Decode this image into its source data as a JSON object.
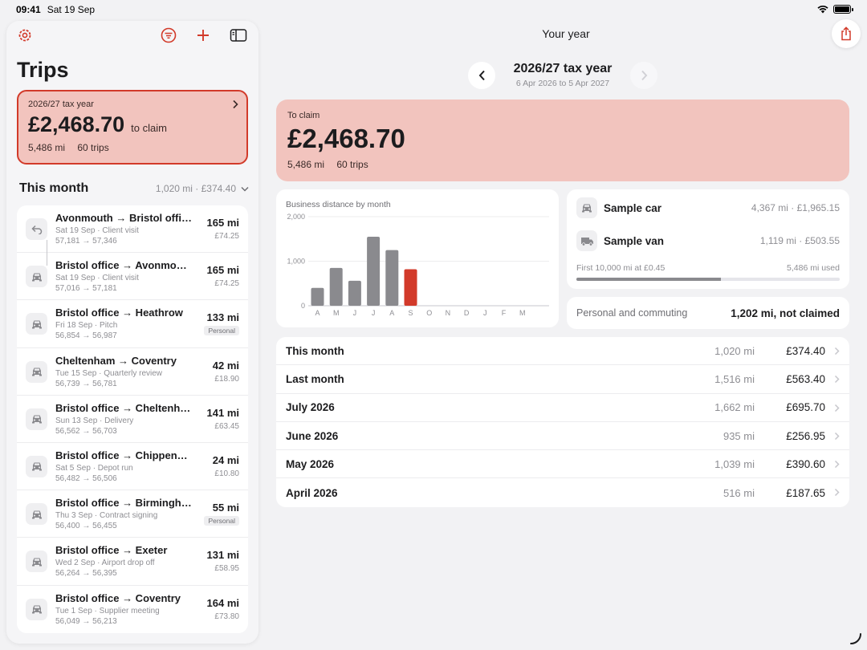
{
  "status": {
    "time": "09:41",
    "date": "Sat 19 Sep"
  },
  "colors": {
    "accent": "#d23a2a",
    "claim_bg": "#f2c4be",
    "bar_gray": "#8a8a8e",
    "bar_current": "#d23a2a"
  },
  "sidebar": {
    "title": "Trips",
    "toolbar": {
      "settings_icon": "gear-icon",
      "filter_icon": "filter-icon",
      "add_icon": "plus-icon",
      "sidebar_icon": "sidebar-toggle-icon"
    },
    "tax_card": {
      "label": "2026/27 tax year",
      "amount": "£2,468.70",
      "to_claim": "to claim",
      "miles": "5,486 mi",
      "trips": "60 trips"
    },
    "this_month": {
      "title": "This month",
      "summary": "1,020 mi · £374.40"
    },
    "trips": [
      {
        "route": "Avonmouth → Bristol office",
        "sub": "Sat 19 Sep · Client visit",
        "odo": "57,181 → 57,346",
        "dist": "165 mi",
        "amount": "£74.25",
        "badge": "",
        "icon": "return-arrow-icon"
      },
      {
        "route": "Bristol office → Avonmouth",
        "sub": "Sat 19 Sep · Client visit",
        "odo": "57,016 → 57,181",
        "dist": "165 mi",
        "amount": "£74.25",
        "badge": "",
        "icon": "car-icon"
      },
      {
        "route": "Bristol office → Heathrow",
        "sub": "Fri 18 Sep · Pitch",
        "odo": "56,854 → 56,987",
        "dist": "133 mi",
        "amount": "",
        "badge": "Personal",
        "icon": "car-icon"
      },
      {
        "route": "Cheltenham → Coventry",
        "sub": "Tue 15 Sep · Quarterly review",
        "odo": "56,739 → 56,781",
        "dist": "42 mi",
        "amount": "£18.90",
        "badge": "",
        "icon": "car-icon"
      },
      {
        "route": "Bristol office → Cheltenham",
        "sub": "Sun 13 Sep · Delivery",
        "odo": "56,562 → 56,703",
        "dist": "141 mi",
        "amount": "£63.45",
        "badge": "",
        "icon": "car-icon"
      },
      {
        "route": "Bristol office → Chippenham",
        "sub": "Sat 5 Sep · Depot run",
        "odo": "56,482 → 56,506",
        "dist": "24 mi",
        "amount": "£10.80",
        "badge": "",
        "icon": "car-icon"
      },
      {
        "route": "Bristol office → Birmingham",
        "sub": "Thu 3 Sep · Contract signing",
        "odo": "56,400 → 56,455",
        "dist": "55 mi",
        "amount": "",
        "badge": "Personal",
        "icon": "car-icon"
      },
      {
        "route": "Bristol office → Exeter",
        "sub": "Wed 2 Sep · Airport drop off",
        "odo": "56,264 → 56,395",
        "dist": "131 mi",
        "amount": "£58.95",
        "badge": "",
        "icon": "car-icon"
      },
      {
        "route": "Bristol office → Coventry",
        "sub": "Tue 1 Sep · Supplier meeting",
        "odo": "56,049 → 56,213",
        "dist": "164 mi",
        "amount": "£73.80",
        "badge": "",
        "icon": "car-icon"
      }
    ]
  },
  "main": {
    "title": "Your year",
    "share_icon": "share-icon",
    "year_nav": {
      "title": "2026/27 tax year",
      "range": "6 Apr 2026 to 5 Apr 2027"
    },
    "claim": {
      "label": "To claim",
      "amount": "£2,468.70",
      "miles": "5,486 mi",
      "trips": "60 trips"
    },
    "vehicles": [
      {
        "name": "Sample car",
        "value": "4,367 mi · £1,965.15",
        "icon": "car-icon"
      },
      {
        "name": "Sample van",
        "value": "1,119 mi · £503.55",
        "icon": "van-icon"
      }
    ],
    "limit": {
      "label": "First 10,000 mi at £0.45",
      "used": "5,486 mi used",
      "fraction": 0.5486
    },
    "personal": {
      "label": "Personal and commuting",
      "value": "1,202 mi, not claimed"
    },
    "months": [
      {
        "name": "This month",
        "dist": "1,020 mi",
        "amount": "£374.40"
      },
      {
        "name": "Last month",
        "dist": "1,516 mi",
        "amount": "£563.40"
      },
      {
        "name": "July 2026",
        "dist": "1,662 mi",
        "amount": "£695.70"
      },
      {
        "name": "June 2026",
        "dist": "935 mi",
        "amount": "£256.95"
      },
      {
        "name": "May 2026",
        "dist": "1,039 mi",
        "amount": "£390.60"
      },
      {
        "name": "April 2026",
        "dist": "516 mi",
        "amount": "£187.65"
      }
    ]
  },
  "chart_data": {
    "type": "bar",
    "title": "Business distance by month",
    "categories": [
      "A",
      "M",
      "J",
      "J",
      "A",
      "S",
      "O",
      "N",
      "D",
      "J",
      "F",
      "M"
    ],
    "values": [
      400,
      850,
      560,
      1550,
      1250,
      820,
      0,
      0,
      0,
      0,
      0,
      0
    ],
    "highlight_index": 5,
    "ylim": [
      0,
      2000
    ],
    "yticks": [
      "0",
      "1,000",
      "2,000"
    ],
    "grid": true
  }
}
